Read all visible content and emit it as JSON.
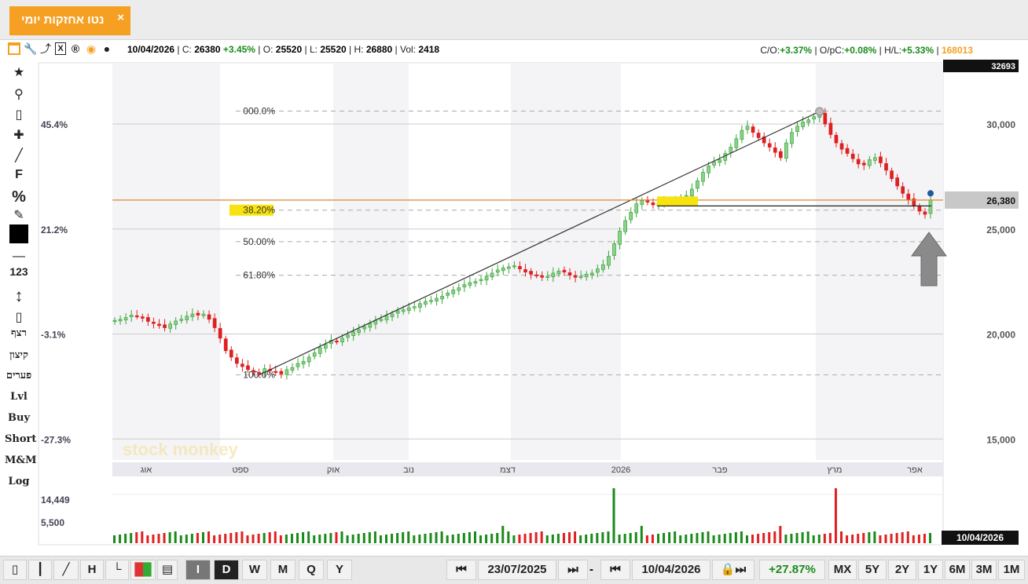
{
  "tab": {
    "title": "נטו אחזקות יומי",
    "close": "×"
  },
  "toolbar_icons": [
    "window-icon",
    "wrench-icon",
    "share-icon",
    "excel-icon",
    "r-icon",
    "target-icon",
    "comment-icon"
  ],
  "quote": {
    "date": "10/04/2026",
    "c_label": "C:",
    "close": "26380",
    "change": "+3.45%",
    "o_label": "O:",
    "open": "25520",
    "l_label": "L:",
    "low": "25520",
    "h_label": "H:",
    "high": "26880",
    "vol_label": "Vol:",
    "volume": "2418"
  },
  "stats": {
    "co_label": "C/O:",
    "co": "+3.37%",
    "opc_label": "O/pC:",
    "opc": "+0.08%",
    "hl_label": "H/L:",
    "hl": "+5.33%",
    "code": "168013"
  },
  "left_tools": [
    "star-icon",
    "search-icon",
    "eraser-icon",
    "crosshair-icon",
    "line-icon",
    "F",
    "%",
    "edit-icon",
    "color-swatch",
    "—",
    "123",
    "resize-icon",
    "candles-icon"
  ],
  "left_text_tools": [
    "רצף",
    "קיצון",
    "פערים",
    "Lvl",
    "Buy",
    "Short",
    "M&M",
    "Log"
  ],
  "chart_data": {
    "type": "candlestick",
    "date_range": [
      "23/07/2025",
      "10/04/2026"
    ],
    "y_axis_right": {
      "ticks": [
        15000,
        20000,
        25000,
        30000
      ],
      "tick_labels": [
        "15,000",
        "20,000",
        "25,000",
        "30,000"
      ],
      "top_label": "32693",
      "ylim": [
        14000,
        32693
      ]
    },
    "y_axis_left_pct": [
      "45.4%",
      "21.2%",
      "-3.1%",
      "-27.3%"
    ],
    "x_month_labels": [
      "אוג",
      "ספט",
      "אוק",
      "נוב",
      "דצמ",
      "2026",
      "פבר",
      "מרץ",
      "אפר"
    ],
    "current_price_label": "26,380",
    "last_date_label": "10/04/2026",
    "fib_levels": [
      {
        "label": "000.0%",
        "value": 30620
      },
      {
        "label": "38.20%",
        "value": 25900,
        "highlight": true
      },
      {
        "label": "50.00%",
        "value": 24400
      },
      {
        "label": "61.80%",
        "value": 22800
      },
      {
        "label": "100.0%",
        "value": 18050
      }
    ],
    "trendline": {
      "from": {
        "date": "2025-09-25",
        "value": 18050
      },
      "to": {
        "date": "2026-03-20",
        "value": 30600
      }
    },
    "horizontal_lines": [
      {
        "value": 26380,
        "color": "#d9892a"
      },
      {
        "value": 26100,
        "color": "#222"
      }
    ],
    "close_series": [
      20650,
      20700,
      20780,
      20900,
      20850,
      20750,
      20600,
      20500,
      20400,
      20300,
      20480,
      20620,
      20700,
      20850,
      20950,
      20900,
      20950,
      20700,
      20300,
      19800,
      19200,
      18900,
      18600,
      18450,
      18300,
      18200,
      18150,
      18350,
      18250,
      18180,
      18100,
      18300,
      18400,
      18600,
      18700,
      18900,
      19100,
      19350,
      19500,
      19700,
      19650,
      19800,
      19950,
      20100,
      20200,
      20350,
      20500,
      20650,
      20700,
      20850,
      20950,
      21100,
      21150,
      21250,
      21300,
      21450,
      21550,
      21600,
      21700,
      21800,
      21950,
      22100,
      22200,
      22350,
      22450,
      22500,
      22600,
      22750,
      22900,
      23050,
      23150,
      23200,
      23250,
      23100,
      22950,
      22850,
      22800,
      22700,
      22750,
      22900,
      23000,
      22950,
      22800,
      22700,
      22750,
      22850,
      22900,
      23100,
      23300,
      23700,
      24300,
      24900,
      25400,
      25800,
      26200,
      26350,
      26280,
      26150,
      26220,
      26300,
      26350,
      26400,
      26450,
      26600,
      26900,
      27300,
      27700,
      28000,
      28200,
      28300,
      28600,
      28900,
      29300,
      29700,
      29900,
      29600,
      29350,
      29100,
      28900,
      28650,
      28400,
      29100,
      29600,
      29900,
      30100,
      30200,
      30350,
      30550,
      30000,
      29500,
      29100,
      28800,
      28600,
      28350,
      28100,
      28050,
      28300,
      28400,
      28150,
      27800,
      27400,
      27050,
      26700,
      26400,
      26100,
      25850,
      25700,
      26380
    ],
    "volume_labels": [
      "14,449",
      "5,500"
    ],
    "volume_spikes": [
      {
        "index": 90,
        "value": 14449
      },
      {
        "index": 130,
        "value": 14449
      }
    ]
  },
  "watermark": "stock monkey",
  "bottom": {
    "chart_types": [
      "candles-icon",
      "bars-icon",
      "line-icon",
      "H",
      "box-icon",
      "color-icon",
      "save-icon"
    ],
    "periods": [
      "I",
      "D",
      "W",
      "M",
      "Q",
      "Y"
    ],
    "start_date": "23/07/2025",
    "end_date": "10/04/2026",
    "dash": "-",
    "change": "+27.87%",
    "ranges": [
      "MX",
      "5Y",
      "2Y",
      "1Y",
      "6M",
      "3M",
      "1M"
    ]
  }
}
